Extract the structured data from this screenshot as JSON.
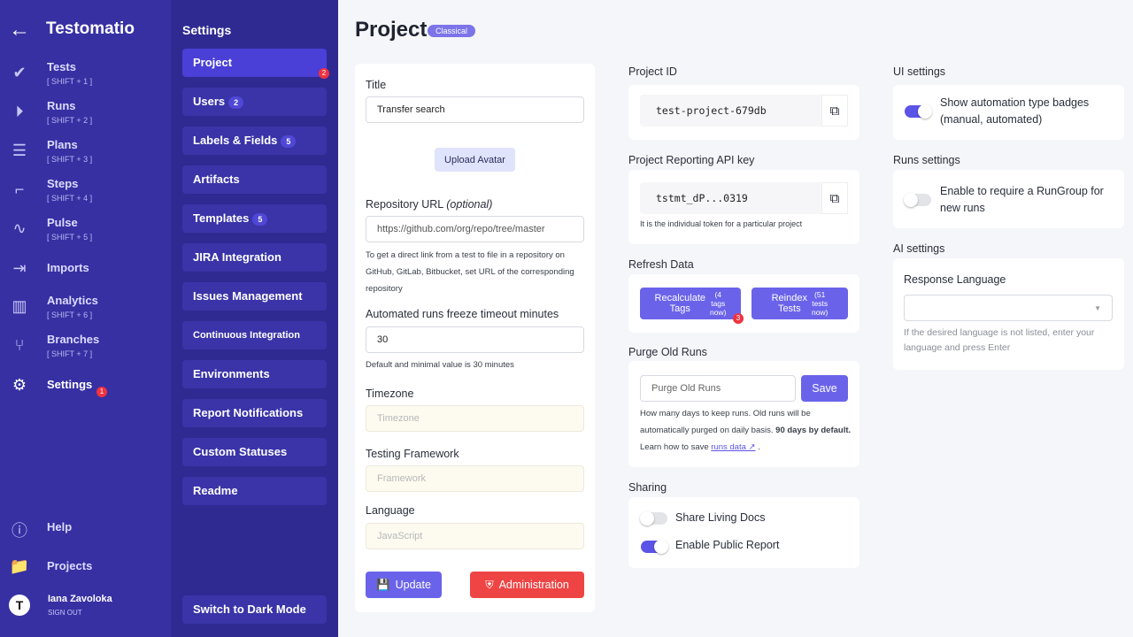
{
  "app": {
    "title": "Testomatio"
  },
  "nav": [
    {
      "label": "Tests",
      "shortcut": "[ SHIFT + 1 ]",
      "icon": "check-icon"
    },
    {
      "label": "Runs",
      "shortcut": "[ SHIFT + 2 ]",
      "icon": "play-icon"
    },
    {
      "label": "Plans",
      "shortcut": "[ SHIFT + 3 ]",
      "icon": "list-check-icon"
    },
    {
      "label": "Steps",
      "shortcut": "[ SHIFT + 4 ]",
      "icon": "steps-icon"
    },
    {
      "label": "Pulse",
      "shortcut": "[ SHIFT + 5 ]",
      "icon": "pulse-icon"
    },
    {
      "label": "Imports",
      "shortcut": "",
      "icon": "import-icon"
    },
    {
      "label": "Analytics",
      "shortcut": "[ SHIFT + 6 ]",
      "icon": "chart-icon"
    },
    {
      "label": "Branches",
      "shortcut": "[ SHIFT + 7 ]",
      "icon": "branch-icon"
    },
    {
      "label": "Settings",
      "shortcut": "",
      "icon": "gear-icon",
      "badge": "1"
    }
  ],
  "nav_bottom": {
    "help": "Help",
    "projects": "Projects",
    "user": "Iana Zavoloka",
    "signout": "SIGN OUT"
  },
  "settings": {
    "title": "Settings",
    "items": [
      {
        "label": "Project",
        "badge": "2",
        "active": true
      },
      {
        "label": "Users",
        "count": "2"
      },
      {
        "label": "Labels & Fields",
        "count": "5"
      },
      {
        "label": "Artifacts"
      },
      {
        "label": "Templates",
        "count": "5"
      },
      {
        "label": "JIRA Integration"
      },
      {
        "label": "Issues Management"
      },
      {
        "label": "Continuous Integration"
      },
      {
        "label": "Environments"
      },
      {
        "label": "Report Notifications"
      },
      {
        "label": "Custom Statuses"
      },
      {
        "label": "Readme"
      }
    ],
    "dark_mode": "Switch to Dark Mode"
  },
  "page": {
    "title": "Project",
    "tag": "Classical"
  },
  "form": {
    "title_label": "Title",
    "title_value": "Transfer search",
    "upload": "Upload Avatar",
    "repo_label": "Repository URL",
    "repo_optional": "(optional)",
    "repo_placeholder": "https://github.com/org/repo/tree/master",
    "repo_help": "To get a direct link from a test to file in a repository on GitHub, GitLab, Bitbucket, set URL of the corresponding repository",
    "freeze_label": "Automated runs freeze timeout minutes",
    "freeze_value": "30",
    "freeze_help": "Default and minimal value is 30 minutes",
    "tz_label": "Timezone",
    "tz_placeholder": "Timezone",
    "fw_label": "Testing Framework",
    "fw_placeholder": "Framework",
    "lang_label": "Language",
    "lang_placeholder": "JavaScript",
    "update": "Update",
    "admin": "Administration"
  },
  "project_id": {
    "label": "Project ID",
    "value": "test-project-679db"
  },
  "api_key": {
    "label": "Project Reporting API key",
    "value": "tstmt_dP...0319",
    "help": "It is the individual token for a particular project"
  },
  "refresh": {
    "label": "Refresh Data",
    "recalc": "Recalculate Tags",
    "recalc_note": "(4 tags now)",
    "recalc_badge": "3",
    "reindex": "Reindex Tests",
    "reindex_note": "(51 tests now)"
  },
  "purge": {
    "label": "Purge Old Runs",
    "placeholder": "Purge Old Runs",
    "save": "Save",
    "help1": "How many days to keep runs. Old runs will be automatically purged on daily basis.",
    "help_bold": "90 days by default.",
    "help2": "Learn how to save",
    "link": "runs data ↗",
    "end": "."
  },
  "sharing": {
    "label": "Sharing",
    "living_docs": "Share Living Docs",
    "living_docs_on": false,
    "public_report": "Enable Public Report",
    "public_report_on": true
  },
  "ui": {
    "label": "UI settings",
    "badges": "Show automation type badges (manual, automated)",
    "badges_on": true
  },
  "runs": {
    "label": "Runs settings",
    "rungroup": "Enable to require a RunGroup for new runs",
    "rungroup_on": false
  },
  "ai": {
    "label": "AI settings",
    "lang_label": "Response Language",
    "help": "If the desired language is not listed, enter your language and press Enter"
  }
}
